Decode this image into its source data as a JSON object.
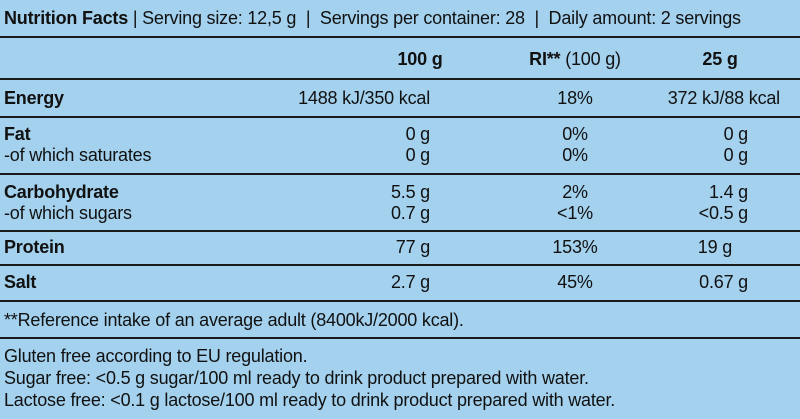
{
  "header": {
    "title": "Nutrition Facts",
    "separator": "|",
    "serving_size": "Serving size: 12,5 g",
    "servings_per_container": "Servings per container: 28",
    "daily_amount": "Daily amount: 2 servings"
  },
  "columns": {
    "per100": "100 g",
    "ri_bold": "RI**",
    "ri_rest": "(100 g)",
    "per25": "25 g"
  },
  "rows": {
    "energy": {
      "label": "Energy",
      "per100": "1488 kJ/350 kcal",
      "ri": "18%",
      "per25": "372 kJ/88 kcal"
    },
    "fat": {
      "label": "Fat",
      "per100": "0 g",
      "ri": "0%",
      "per25": "0 g"
    },
    "saturates": {
      "label": "-of which saturates",
      "per100": "0 g",
      "ri": "0%",
      "per25": "0 g"
    },
    "carbohydrate": {
      "label": "Carbohydrate",
      "per100": "5.5 g",
      "ri": "2%",
      "per25": "1.4 g"
    },
    "sugars": {
      "label": "-of which sugars",
      "per100": "0.7 g",
      "ri": "<1%",
      "per25": "<0.5 g"
    },
    "protein": {
      "label": "Protein",
      "per100": "77 g",
      "ri": "153%",
      "per25": "19 g"
    },
    "salt": {
      "label": "Salt",
      "per100": "2.7 g",
      "ri": "45%",
      "per25": "0.67 g"
    }
  },
  "footnote": "**Reference intake of an average adult (8400kJ/2000 kcal).",
  "notes": [
    "Gluten free according to EU regulation.",
    "Sugar free: <0.5 g sugar/100 ml ready to drink product prepared with water.",
    "Lactose free: <0.1 g lactose/100 ml ready to drink product prepared with water."
  ],
  "colors": {
    "background": "#a3d1ee",
    "text": "#111111",
    "rule": "#1a1a1a"
  }
}
